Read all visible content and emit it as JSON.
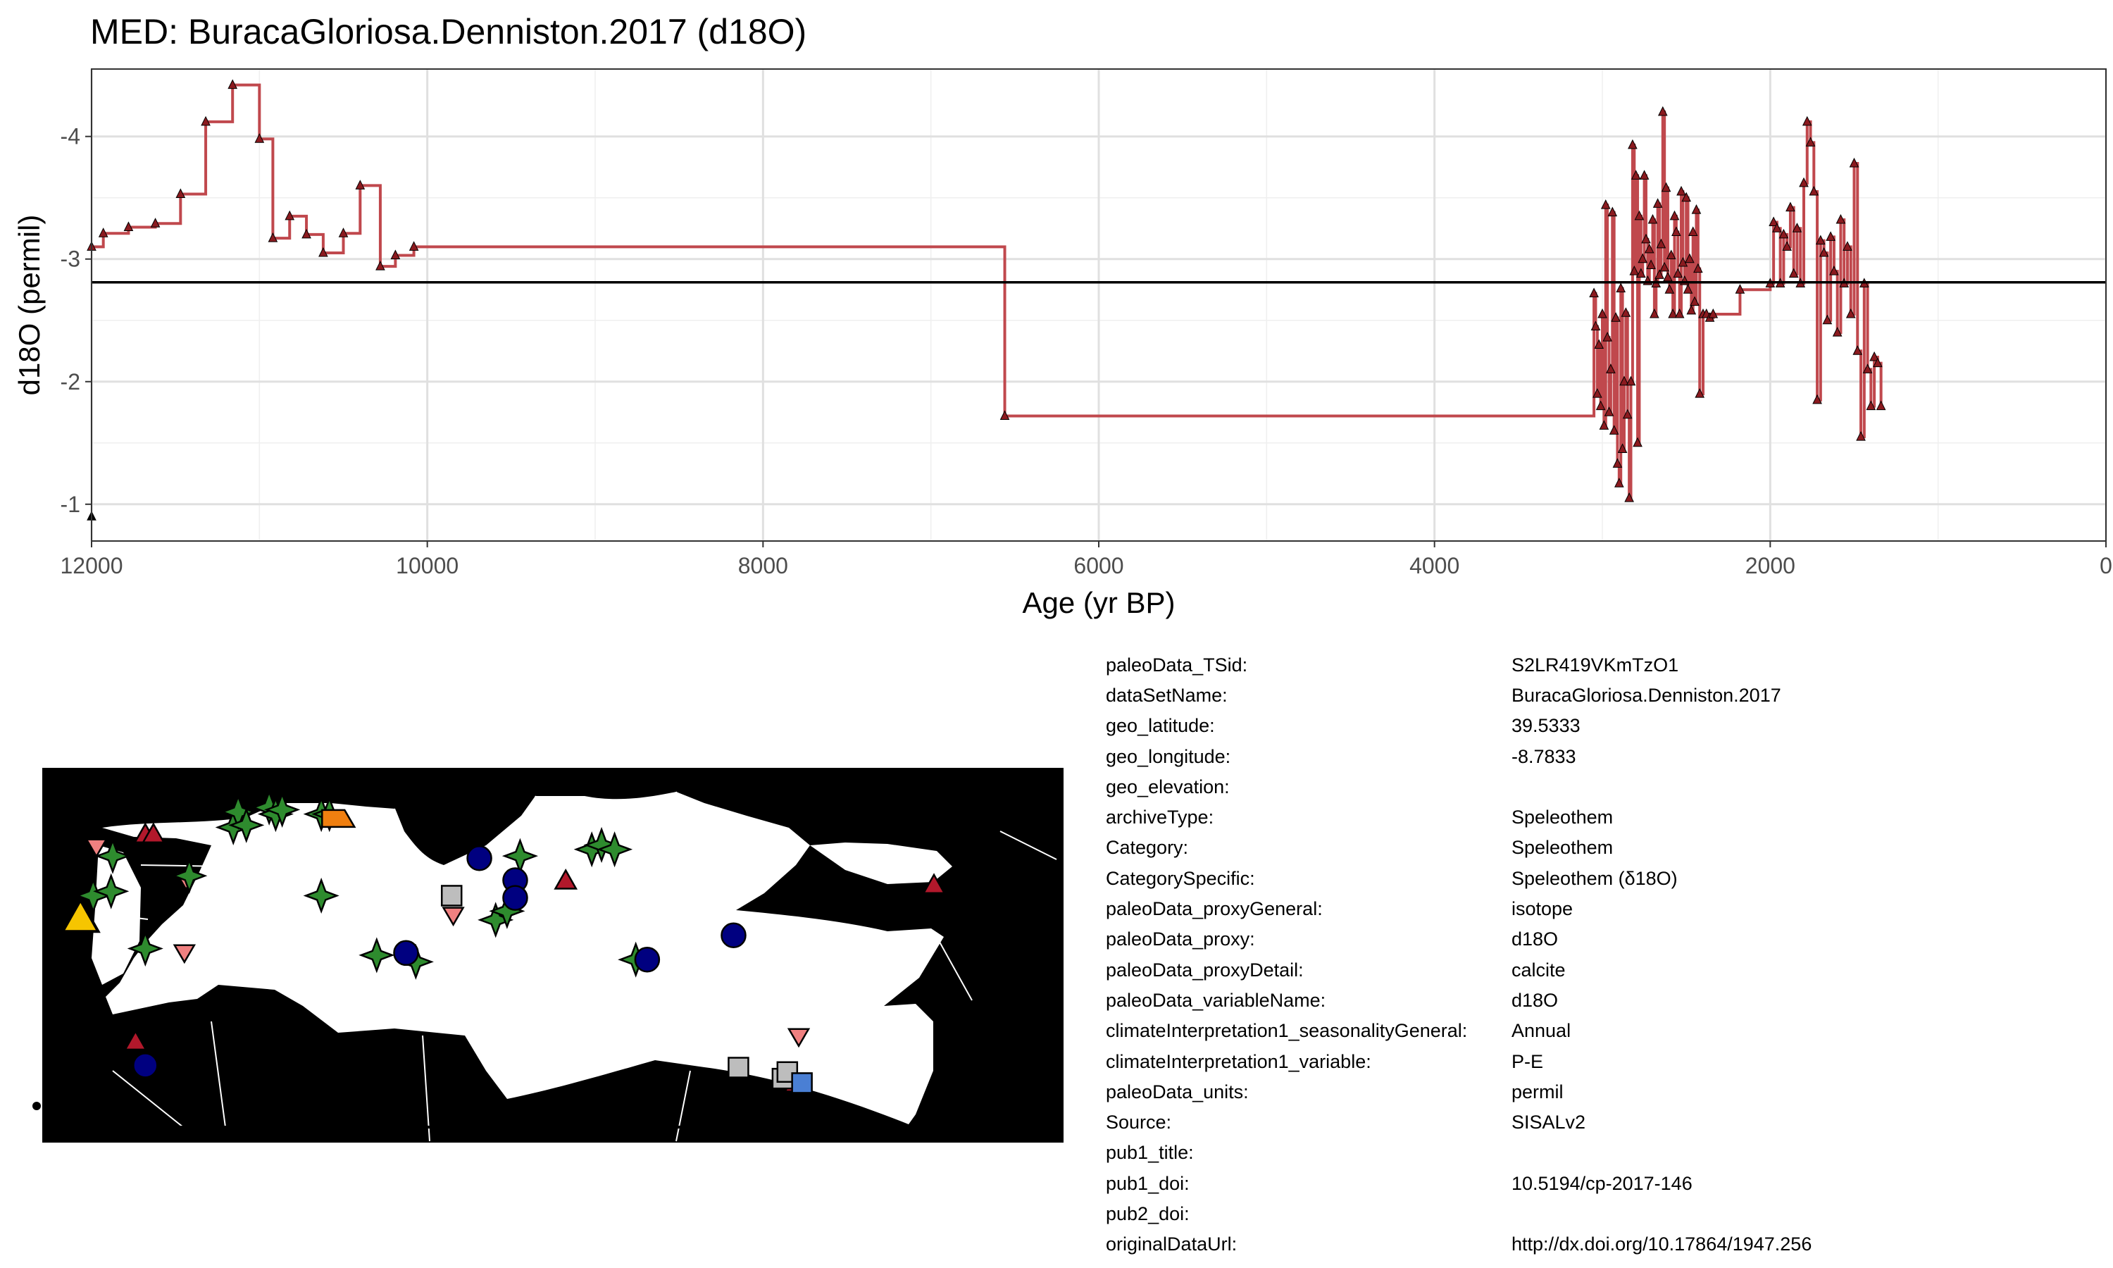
{
  "title": "MED: BuracaGloriosa.Denniston.2017 (d18O)",
  "colors": {
    "series_line": "#c0484d",
    "series_marker": "#8b1a1f",
    "reference_line": "#000000",
    "map_land": "#c4c4c4",
    "map_border": "#ffffff",
    "highlight_site": "#f6c500"
  },
  "chart_data": {
    "type": "line",
    "title": "MED: BuracaGloriosa.Denniston.2017 (d18O)",
    "xlabel": "Age (yr BP)",
    "ylabel": "d18O (permil)",
    "x_reversed": true,
    "y_reversed": true,
    "xlim": [
      12000,
      0
    ],
    "ylim": [
      -4.55,
      -0.7
    ],
    "x_ticks": [
      12000,
      10000,
      8000,
      6000,
      4000,
      2000,
      0
    ],
    "y_ticks": [
      -4,
      -3,
      -2,
      -1
    ],
    "grid": true,
    "reference_line": {
      "y": -2.81
    },
    "series": [
      {
        "step": true,
        "x": [
          12000,
          11930,
          11780,
          11620,
          11470,
          11320,
          11160,
          11000,
          10920,
          10820,
          10720,
          10620,
          10500,
          10400,
          10280,
          10190,
          10080,
          6560,
          3050,
          3040,
          3030,
          3020,
          3010,
          3000,
          2990,
          2980,
          2970,
          2960,
          2950,
          2940,
          2930,
          2920,
          2910,
          2900,
          2890,
          2880,
          2870,
          2860,
          2850,
          2840,
          2830,
          2820,
          2810,
          2800,
          2790,
          2780,
          2770,
          2760,
          2750,
          2740,
          2730,
          2720,
          2710,
          2700,
          2690,
          2680,
          2670,
          2660,
          2650,
          2640,
          2630,
          2620,
          2610,
          2600,
          2590,
          2580,
          2570,
          2560,
          2550,
          2540,
          2530,
          2520,
          2510,
          2500,
          2490,
          2480,
          2470,
          2460,
          2450,
          2440,
          2430,
          2420,
          2400,
          2380,
          2360,
          2340,
          2180,
          2000,
          1980,
          1960,
          1940,
          1920,
          1900,
          1880,
          1860,
          1840,
          1820,
          1800,
          1780,
          1760,
          1740,
          1720,
          1700,
          1680,
          1660,
          1640,
          1620,
          1600,
          1580,
          1560,
          1540,
          1520,
          1500,
          1480,
          1460,
          1440,
          1420,
          1400,
          1380,
          1360,
          1340
        ],
        "y": [
          -3.1,
          -3.21,
          -3.26,
          -3.29,
          -3.53,
          -4.12,
          -4.42,
          -3.98,
          -3.17,
          -3.35,
          -3.2,
          -3.05,
          -3.21,
          -3.6,
          -2.94,
          -3.03,
          -3.1,
          -1.72,
          -2.72,
          -2.45,
          -1.9,
          -2.3,
          -1.8,
          -2.55,
          -1.64,
          -3.44,
          -2.36,
          -1.75,
          -2.1,
          -3.38,
          -1.6,
          -2.52,
          -1.33,
          -1.17,
          -2.76,
          -1.45,
          -2.0,
          -2.56,
          -1.73,
          -1.05,
          -2.0,
          -3.93,
          -2.9,
          -3.68,
          -1.5,
          -3.35,
          -2.88,
          -3.0,
          -3.68,
          -3.16,
          -2.82,
          -3.08,
          -2.95,
          -3.32,
          -2.55,
          -2.8,
          -3.45,
          -2.87,
          -3.12,
          -4.2,
          -2.93,
          -3.58,
          -2.85,
          -2.75,
          -3.03,
          -2.55,
          -3.35,
          -3.22,
          -2.88,
          -2.55,
          -3.55,
          -2.97,
          -2.82,
          -3.5,
          -2.75,
          -3.0,
          -2.58,
          -3.22,
          -2.65,
          -3.4,
          -2.92,
          -1.9,
          -2.55,
          -2.55,
          -2.52,
          -2.55,
          -2.75,
          -2.8,
          -3.3,
          -3.25,
          -2.8,
          -3.2,
          -3.1,
          -3.42,
          -2.88,
          -3.25,
          -2.8,
          -3.62,
          -4.12,
          -3.95,
          -3.55,
          -1.85,
          -3.15,
          -3.05,
          -2.5,
          -3.18,
          -2.9,
          -2.4,
          -3.32,
          -2.8,
          -3.1,
          -2.55,
          -3.78,
          -2.25,
          -1.55,
          -2.8,
          -2.1,
          -1.8,
          -2.2,
          -2.15,
          -1.8
        ]
      },
      {
        "markers_only": true,
        "x": [
          12000
        ],
        "y": [
          -0.9
        ]
      }
    ]
  },
  "map": {
    "markers": [
      {
        "shape": "triangle-up",
        "color": "#f6c500",
        "lon": -8.78,
        "lat": 39.53
      },
      {
        "shape": "triangle-up",
        "color": "#b2182b",
        "lon": -4.8,
        "lat": 43.3
      },
      {
        "shape": "triangle-up",
        "color": "#b2182b",
        "lon": -4.3,
        "lat": 43.3
      },
      {
        "shape": "triangle-up",
        "color": "#b2182b",
        "lon": -5.4,
        "lat": 33.9
      },
      {
        "shape": "triangle-up",
        "color": "#b2182b",
        "lon": 21.0,
        "lat": 41.2
      },
      {
        "shape": "triangle-up",
        "color": "#b2182b",
        "lon": 43.6,
        "lat": 41.0
      },
      {
        "shape": "triangle-up",
        "color": "#b2182b",
        "lon": 35.1,
        "lat": 32.0
      },
      {
        "shape": "triangle-down",
        "color": "#f08080",
        "lon": -7.8,
        "lat": 42.7
      },
      {
        "shape": "triangle-down",
        "color": "#f08080",
        "lon": -2.3,
        "lat": 41.2
      },
      {
        "shape": "triangle-down",
        "color": "#f08080",
        "lon": -2.4,
        "lat": 37.9
      },
      {
        "shape": "triangle-down",
        "color": "#f08080",
        "lon": 14.1,
        "lat": 39.6
      },
      {
        "shape": "triangle-down",
        "color": "#f08080",
        "lon": 35.3,
        "lat": 34.1
      },
      {
        "shape": "star4",
        "color": "#2e8b2e",
        "lon": -8.0,
        "lat": 40.5
      },
      {
        "shape": "star4",
        "color": "#2e8b2e",
        "lon": -6.9,
        "lat": 40.7
      },
      {
        "shape": "star4",
        "color": "#2e8b2e",
        "lon": -6.8,
        "lat": 42.3
      },
      {
        "shape": "star4",
        "color": "#2e8b2e",
        "lon": -2.1,
        "lat": 41.4
      },
      {
        "shape": "star4",
        "color": "#2e8b2e",
        "lon": -4.8,
        "lat": 38.1
      },
      {
        "shape": "star4",
        "color": "#2e8b2e",
        "lon": 0.6,
        "lat": 43.6
      },
      {
        "shape": "star4",
        "color": "#2e8b2e",
        "lon": 0.9,
        "lat": 44.3
      },
      {
        "shape": "star4",
        "color": "#2e8b2e",
        "lon": 1.4,
        "lat": 43.7
      },
      {
        "shape": "star4",
        "color": "#2e8b2e",
        "lon": 2.8,
        "lat": 44.5
      },
      {
        "shape": "star4",
        "color": "#2e8b2e",
        "lon": 3.2,
        "lat": 44.2
      },
      {
        "shape": "star4",
        "color": "#2e8b2e",
        "lon": 3.6,
        "lat": 44.4
      },
      {
        "shape": "star4",
        "color": "#2e8b2e",
        "lon": 6.0,
        "lat": 44.2
      },
      {
        "shape": "star4",
        "color": "#2e8b2e",
        "lon": 6.5,
        "lat": 44.2
      },
      {
        "shape": "star4",
        "color": "#2e8b2e",
        "lon": 6.0,
        "lat": 40.5
      },
      {
        "shape": "star4",
        "color": "#2e8b2e",
        "lon": 9.4,
        "lat": 37.8
      },
      {
        "shape": "star4",
        "color": "#2e8b2e",
        "lon": 18.2,
        "lat": 42.3
      },
      {
        "shape": "star4",
        "color": "#2e8b2e",
        "lon": 16.7,
        "lat": 39.4
      },
      {
        "shape": "star4",
        "color": "#2e8b2e",
        "lon": 17.4,
        "lat": 39.8
      },
      {
        "shape": "star4",
        "color": "#2e8b2e",
        "lon": 22.6,
        "lat": 42.6
      },
      {
        "shape": "star4",
        "color": "#2e8b2e",
        "lon": 23.2,
        "lat": 42.8
      },
      {
        "shape": "star4",
        "color": "#2e8b2e",
        "lon": 24.0,
        "lat": 42.6
      },
      {
        "shape": "star4",
        "color": "#2e8b2e",
        "lon": 11.8,
        "lat": 37.5
      },
      {
        "shape": "star4",
        "color": "#2e8b2e",
        "lon": 25.3,
        "lat": 37.6
      },
      {
        "shape": "circle",
        "color": "#000080",
        "lon": 15.7,
        "lat": 42.2
      },
      {
        "shape": "circle",
        "color": "#000080",
        "lon": 17.9,
        "lat": 41.2
      },
      {
        "shape": "circle",
        "color": "#000080",
        "lon": 17.9,
        "lat": 40.4
      },
      {
        "shape": "circle",
        "color": "#000080",
        "lon": 11.2,
        "lat": 37.9
      },
      {
        "shape": "circle",
        "color": "#000080",
        "lon": 26.0,
        "lat": 37.6
      },
      {
        "shape": "circle",
        "color": "#000080",
        "lon": 31.3,
        "lat": 38.7
      },
      {
        "shape": "circle",
        "color": "#000080",
        "lon": -4.8,
        "lat": 32.8
      },
      {
        "shape": "square",
        "color": "#bdbdbd",
        "lon": 14.0,
        "lat": 40.5
      },
      {
        "shape": "square",
        "color": "#bdbdbd",
        "lon": 31.6,
        "lat": 32.7
      },
      {
        "shape": "square",
        "color": "#bdbdbd",
        "lon": 34.3,
        "lat": 32.2
      },
      {
        "shape": "square",
        "color": "#bdbdbd",
        "lon": 34.6,
        "lat": 32.5
      },
      {
        "shape": "square",
        "color": "#4a7fd4",
        "lon": 35.5,
        "lat": 32.0
      },
      {
        "shape": "parallelogram",
        "color": "#f07f10",
        "lon": 7.0,
        "lat": 44.0
      }
    ]
  },
  "metadata": [
    {
      "key": "paleoData_TSid:",
      "value": "S2LR419VKmTzO1"
    },
    {
      "key": "dataSetName:",
      "value": "BuracaGloriosa.Denniston.2017"
    },
    {
      "key": "geo_latitude:",
      "value": "39.5333"
    },
    {
      "key": "geo_longitude:",
      "value": "-8.7833"
    },
    {
      "key": "geo_elevation:",
      "value": ""
    },
    {
      "key": "archiveType:",
      "value": "Speleothem"
    },
    {
      "key": "Category:",
      "value": "Speleothem"
    },
    {
      "key": "CategorySpecific:",
      "value": "Speleothem (δ18O)"
    },
    {
      "key": "paleoData_proxyGeneral:",
      "value": "isotope"
    },
    {
      "key": "paleoData_proxy:",
      "value": "d18O"
    },
    {
      "key": "paleoData_proxyDetail:",
      "value": "calcite"
    },
    {
      "key": "paleoData_variableName:",
      "value": "d18O"
    },
    {
      "key": "climateInterpretation1_seasonalityGeneral:",
      "value": "Annual"
    },
    {
      "key": "climateInterpretation1_variable:",
      "value": "P-E"
    },
    {
      "key": "paleoData_units:",
      "value": "permil"
    },
    {
      "key": "Source:",
      "value": "SISALv2"
    },
    {
      "key": "pub1_title:",
      "value": ""
    },
    {
      "key": "pub1_doi:",
      "value": "10.5194/cp-2017-146"
    },
    {
      "key": "pub2_doi:",
      "value": ""
    },
    {
      "key": "originalDataUrl:",
      "value": "http://dx.doi.org/10.17864/1947.256"
    }
  ]
}
